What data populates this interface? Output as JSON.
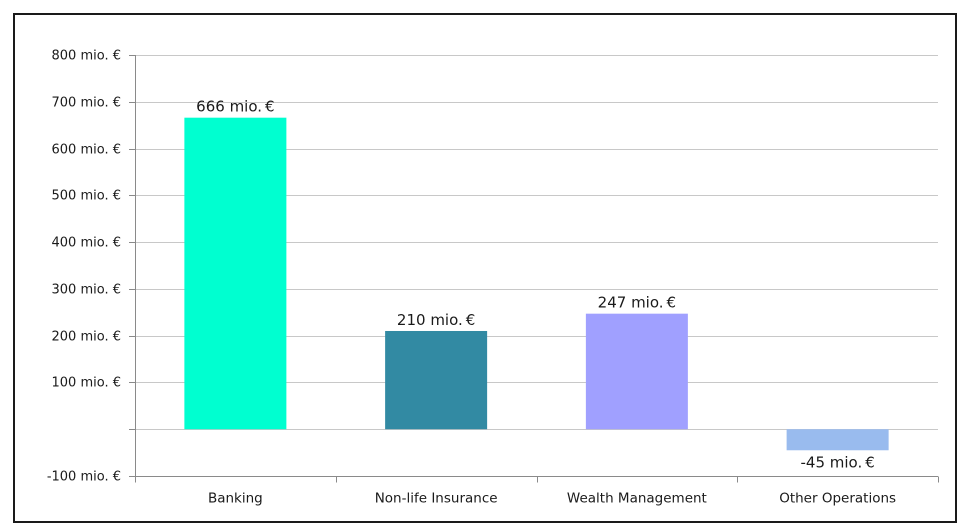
{
  "chart_data": {
    "type": "bar",
    "categories": [
      "Banking",
      "Non-life Insurance",
      "Wealth Management",
      "Other Operations"
    ],
    "values": [
      666,
      210,
      247,
      -45
    ],
    "data_labels": [
      "666 mio. €",
      "210 mio. €",
      "247 mio. €",
      "-45 mio. €"
    ],
    "colors": [
      "#00ffd0",
      "#328aa3",
      "#a0a0ff",
      "#99bbee"
    ],
    "ylim": [
      -100,
      800
    ],
    "yticks": [
      {
        "value": 800,
        "label": "800 mio. €"
      },
      {
        "value": 700,
        "label": "700 mio. €"
      },
      {
        "value": 600,
        "label": "600 mio. €"
      },
      {
        "value": 500,
        "label": "500 mio. €"
      },
      {
        "value": 400,
        "label": "400 mio. €"
      },
      {
        "value": 300,
        "label": "300 mio. €"
      },
      {
        "value": 200,
        "label": "200 mio. €"
      },
      {
        "value": 100,
        "label": "100 mio. €"
      },
      {
        "value": 0,
        "label": ""
      },
      {
        "value": -100,
        "label": "-100 mio. €"
      }
    ],
    "grid": true,
    "legend": "none"
  }
}
